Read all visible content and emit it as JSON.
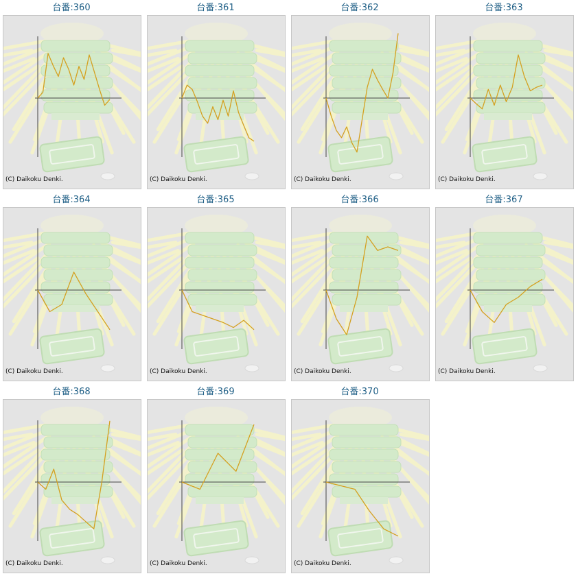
{
  "copyright": "(C) Daikoku Denki.",
  "colors": {
    "line": "#d4a020",
    "axis": "#444444",
    "title": "#1f5f86",
    "background": "#e4e4e4"
  },
  "chart_data": [
    {
      "type": "line",
      "title": "台番:360",
      "y": [
        0,
        8,
        62,
        45,
        30,
        56,
        40,
        18,
        44,
        26,
        60,
        36,
        12,
        -10,
        -2
      ]
    },
    {
      "type": "line",
      "title": "台番:361",
      "y": [
        0,
        18,
        12,
        -5,
        -25,
        -35,
        -12,
        -30,
        -3,
        -25,
        10,
        -20,
        -38,
        -55,
        -60
      ]
    },
    {
      "type": "line",
      "title": "台番:362",
      "y": [
        0,
        -25,
        -45,
        -55,
        -40,
        -62,
        -75,
        -30,
        15,
        40,
        25,
        12,
        0,
        35,
        90
      ]
    },
    {
      "type": "line",
      "title": "台番:363",
      "y": [
        0,
        -8,
        -15,
        12,
        -10,
        18,
        -5,
        15,
        60,
        30,
        10,
        15,
        18
      ]
    },
    {
      "type": "line",
      "title": "台番:364",
      "y": [
        0,
        -30,
        -20,
        25,
        -5,
        -30,
        -55
      ]
    },
    {
      "type": "line",
      "title": "台番:365",
      "y": [
        0,
        -30,
        -35,
        -40,
        -45,
        -52,
        -42,
        -55
      ]
    },
    {
      "type": "line",
      "title": "台番:366",
      "y": [
        0,
        -40,
        -62,
        -10,
        75,
        55,
        60,
        55
      ]
    },
    {
      "type": "line",
      "title": "台番:367",
      "y": [
        0,
        -30,
        -45,
        -20,
        -10,
        5,
        15
      ]
    },
    {
      "type": "line",
      "title": "台番:368",
      "y": [
        0,
        -10,
        18,
        -25,
        -38,
        -45,
        -55,
        -65,
        0,
        85
      ]
    },
    {
      "type": "line",
      "title": "台番:369",
      "y": [
        0,
        -10,
        40,
        15,
        80
      ]
    },
    {
      "type": "line",
      "title": "台番:370",
      "y": [
        0,
        -5,
        -10,
        -40,
        -65,
        -75
      ]
    }
  ]
}
